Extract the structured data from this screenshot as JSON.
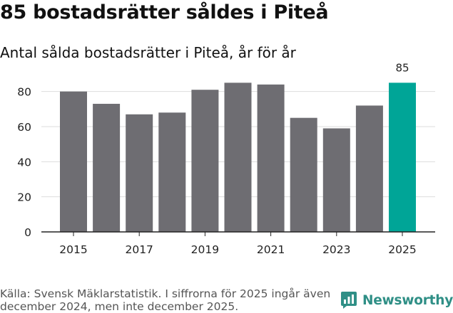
{
  "header": {
    "title": "85 bostadsrätter såldes i Piteå",
    "subtitle": "Antal sålda bostadsrätter i Piteå, år för år"
  },
  "chart_data": {
    "type": "bar",
    "title": "85 bostadsrätter såldes i Piteå",
    "subtitle": "Antal sålda bostadsrätter i Piteå, år för år",
    "categories": [
      "2015",
      "2016",
      "2017",
      "2018",
      "2019",
      "2020",
      "2021",
      "2022",
      "2023",
      "2024",
      "2025"
    ],
    "values": [
      80,
      73,
      67,
      68,
      81,
      85,
      84,
      65,
      59,
      72,
      85
    ],
    "x_tick_labels": [
      "2015",
      "2017",
      "2019",
      "2021",
      "2023",
      "2025"
    ],
    "y_ticks": [
      0,
      20,
      40,
      60,
      80
    ],
    "ylim": [
      0,
      90
    ],
    "xlabel": "",
    "ylabel": "",
    "grid": true,
    "highlight": {
      "category": "2025",
      "label": "85"
    },
    "colors": {
      "bar": "#6e6d72",
      "highlight": "#00a597",
      "grid": "#dddddd",
      "axis": "#222222"
    }
  },
  "footer": {
    "source": "Källa: Svensk Mäklarstatistik. I siffrorna för 2025 ingår även december 2024, men inte december 2025.",
    "logo_text": "Newsworthy",
    "logo_color": "#2f8f86",
    "logo_icon": "bar-chart-icon"
  }
}
